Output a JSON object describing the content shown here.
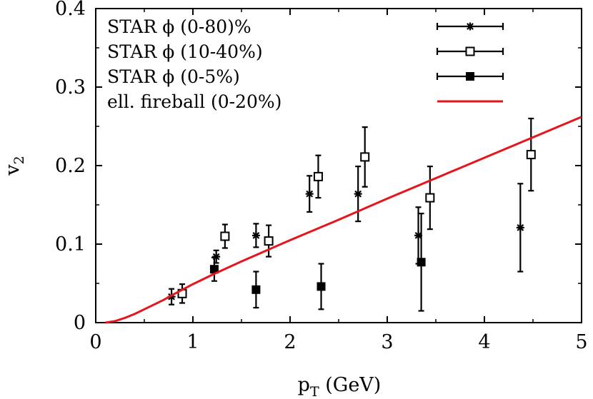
{
  "chart_data": {
    "type": "scatter",
    "xlabel": "p_T (GeV)",
    "xlabel_main": "p",
    "xlabel_sub": "T",
    "xlabel_unit": " (GeV)",
    "ylabel": "v_2",
    "ylabel_main": "v",
    "ylabel_sub": "2",
    "xlim": [
      0,
      5
    ],
    "ylim": [
      0,
      0.4
    ],
    "x_ticks": [
      0,
      1,
      2,
      3,
      4,
      5
    ],
    "x_tick_labels": [
      "0",
      "1",
      "2",
      "3",
      "4",
      "5"
    ],
    "y_ticks": [
      0,
      0.1,
      0.2,
      0.3,
      0.4
    ],
    "y_tick_labels": [
      "0",
      "0.1",
      "0.2",
      "0.3",
      "0.4"
    ],
    "grid": false,
    "legend_position": "top",
    "series": [
      {
        "name": "STAR ϕ (0-80)%",
        "marker": "star",
        "color": "#000000",
        "points": [
          {
            "x": 0.78,
            "y": 0.033,
            "yerr": 0.01
          },
          {
            "x": 1.24,
            "y": 0.084,
            "yerr": 0.008
          },
          {
            "x": 1.65,
            "y": 0.111,
            "yerr": 0.015
          },
          {
            "x": 2.2,
            "y": 0.164,
            "yerr": 0.023
          },
          {
            "x": 2.7,
            "y": 0.164,
            "yerr": 0.035
          },
          {
            "x": 3.32,
            "y": 0.111,
            "yerr": 0.036
          },
          {
            "x": 4.37,
            "y": 0.121,
            "yerr": 0.056
          }
        ]
      },
      {
        "name": "STAR ϕ (10-40%)",
        "marker": "open-square",
        "color": "#000000",
        "points": [
          {
            "x": 0.89,
            "y": 0.037,
            "yerr": 0.012
          },
          {
            "x": 1.33,
            "y": 0.11,
            "yerr": 0.015
          },
          {
            "x": 1.78,
            "y": 0.104,
            "yerr": 0.02
          },
          {
            "x": 2.29,
            "y": 0.186,
            "yerr": 0.027
          },
          {
            "x": 2.77,
            "y": 0.211,
            "yerr": 0.038
          },
          {
            "x": 3.44,
            "y": 0.159,
            "yerr": 0.04
          },
          {
            "x": 4.48,
            "y": 0.214,
            "yerr": 0.046
          }
        ]
      },
      {
        "name": "STAR ϕ (0-5%)",
        "marker": "filled-square",
        "color": "#000000",
        "points": [
          {
            "x": 1.22,
            "y": 0.068,
            "yerr": 0.015
          },
          {
            "x": 1.65,
            "y": 0.042,
            "yerr": 0.023
          },
          {
            "x": 2.32,
            "y": 0.046,
            "yerr": 0.029
          },
          {
            "x": 3.35,
            "y": 0.077,
            "yerr": 0.062
          }
        ]
      },
      {
        "name": "ell. fireball (0-20%)",
        "marker": "line",
        "color": "#e8141c",
        "points": [
          {
            "x": 0.1,
            "y": 0.0
          },
          {
            "x": 0.2,
            "y": 0.002
          },
          {
            "x": 0.3,
            "y": 0.006
          },
          {
            "x": 0.4,
            "y": 0.011
          },
          {
            "x": 0.5,
            "y": 0.017
          },
          {
            "x": 0.6,
            "y": 0.023
          },
          {
            "x": 0.7,
            "y": 0.029
          },
          {
            "x": 0.8,
            "y": 0.036
          },
          {
            "x": 1.0,
            "y": 0.049
          },
          {
            "x": 1.2,
            "y": 0.061
          },
          {
            "x": 1.5,
            "y": 0.078
          },
          {
            "x": 2.0,
            "y": 0.105
          },
          {
            "x": 2.5,
            "y": 0.131
          },
          {
            "x": 3.0,
            "y": 0.158
          },
          {
            "x": 3.5,
            "y": 0.184
          },
          {
            "x": 4.0,
            "y": 0.21
          },
          {
            "x": 4.5,
            "y": 0.236
          },
          {
            "x": 5.0,
            "y": 0.262
          }
        ]
      }
    ]
  }
}
